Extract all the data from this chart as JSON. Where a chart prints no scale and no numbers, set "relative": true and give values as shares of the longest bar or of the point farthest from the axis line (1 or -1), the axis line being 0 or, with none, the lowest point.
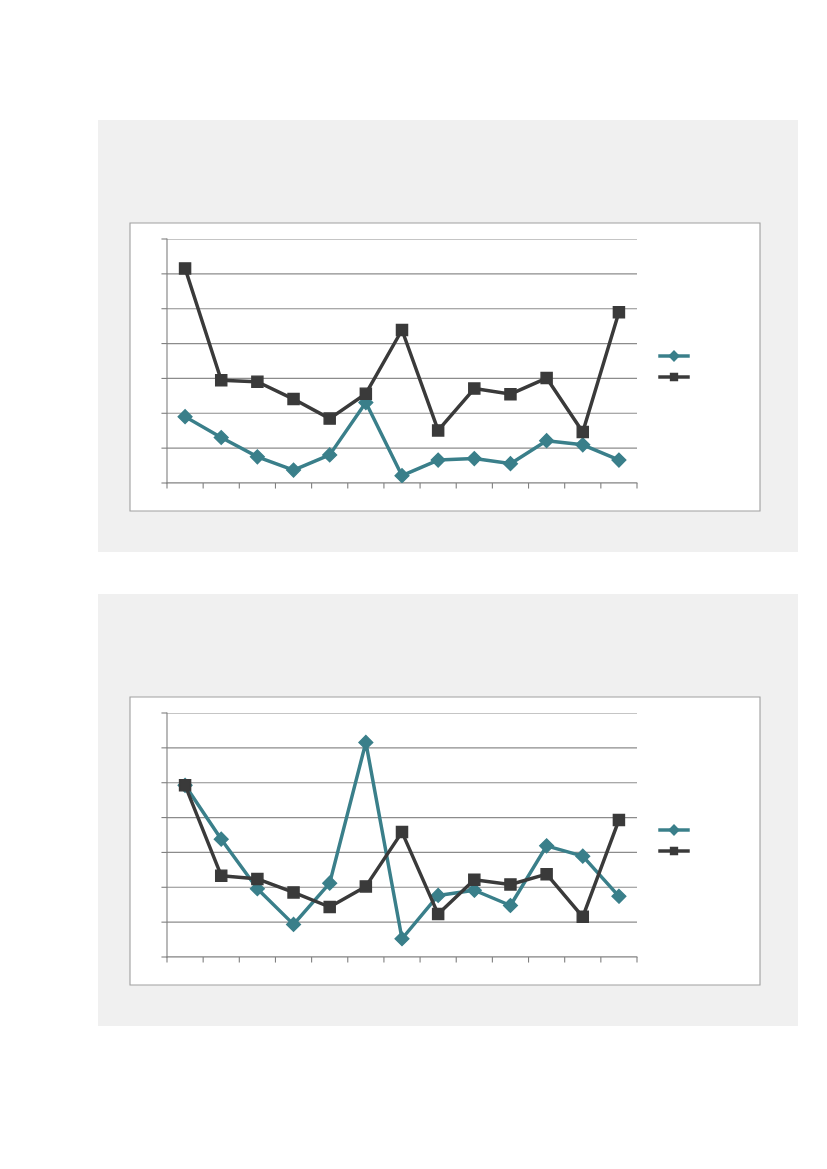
{
  "chart_data": [
    {
      "type": "line",
      "relative": true,
      "categories": [
        null,
        null,
        null,
        null,
        null,
        null,
        null,
        null,
        null,
        null,
        null,
        null,
        null
      ],
      "grid": "y",
      "line_style": "solid",
      "series": [
        {
          "color": "#3a7f8a",
          "marker": "diamond",
          "values": [
            0.309,
            0.212,
            0.122,
            0.06,
            0.131,
            0.375,
            0.034,
            0.107,
            0.114,
            0.09,
            0.197,
            0.178,
            0.107
          ]
        },
        {
          "color": "#3a3a3a",
          "marker": "square",
          "values": [
            1,
            0.479,
            0.472,
            0.391,
            0.3,
            0.416,
            0.713,
            0.245,
            0.44,
            0.414,
            0.489,
            0.238,
            0.796
          ]
        }
      ]
    },
    {
      "type": "line",
      "relative": true,
      "categories": [
        null,
        null,
        null,
        null,
        null,
        null,
        null,
        null,
        null,
        null,
        null,
        null,
        null
      ],
      "grid": "y",
      "line_style": "solid",
      "series": [
        {
          "color": "#3a7f8a",
          "marker": "diamond",
          "values": [
            0.8,
            0.549,
            0.318,
            0.152,
            0.344,
            1,
            0.085,
            0.287,
            0.311,
            0.24,
            0.518,
            0.47,
            0.283
          ]
        },
        {
          "color": "#3a3a3a",
          "marker": "square",
          "values": [
            0.8,
            0.379,
            0.364,
            0.301,
            0.233,
            0.329,
            0.582,
            0.2,
            0.36,
            0.338,
            0.386,
            0.187,
            0.638
          ]
        }
      ]
    }
  ]
}
